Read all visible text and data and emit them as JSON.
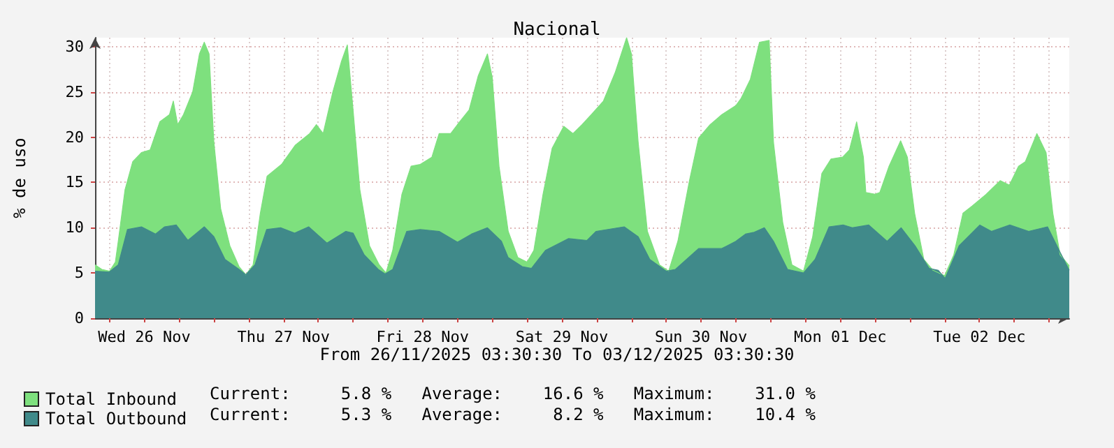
{
  "chart_data": {
    "type": "area",
    "title": "Nacional",
    "ylabel": "% de uso",
    "xlim": [
      "2025-11-26T03:30",
      "2025-12-03T03:30"
    ],
    "xticks": [
      {
        "value": "2025-11-26T06:00",
        "label": null
      },
      {
        "value": "2025-11-26T12:00",
        "label": "Wed 26 Nov"
      },
      {
        "value": "2025-11-26T18:00",
        "label": null
      },
      {
        "value": "2025-11-27T00:00",
        "label": null
      },
      {
        "value": "2025-11-27T06:00",
        "label": null
      },
      {
        "value": "2025-11-27T12:00",
        "label": "Thu 27 Nov"
      },
      {
        "value": "2025-11-27T18:00",
        "label": null
      },
      {
        "value": "2025-11-28T00:00",
        "label": null
      },
      {
        "value": "2025-11-28T06:00",
        "label": null
      },
      {
        "value": "2025-11-28T12:00",
        "label": "Fri 28 Nov"
      },
      {
        "value": "2025-11-28T18:00",
        "label": null
      },
      {
        "value": "2025-11-29T00:00",
        "label": null
      },
      {
        "value": "2025-11-29T06:00",
        "label": null
      },
      {
        "value": "2025-11-29T12:00",
        "label": "Sat 29 Nov"
      },
      {
        "value": "2025-11-29T18:00",
        "label": null
      },
      {
        "value": "2025-11-30T00:00",
        "label": null
      },
      {
        "value": "2025-11-30T06:00",
        "label": null
      },
      {
        "value": "2025-11-30T12:00",
        "label": "Sun 30 Nov"
      },
      {
        "value": "2025-11-30T18:00",
        "label": null
      },
      {
        "value": "2025-12-01T00:00",
        "label": null
      },
      {
        "value": "2025-12-01T06:00",
        "label": null
      },
      {
        "value": "2025-12-01T12:00",
        "label": "Mon 01 Dec"
      },
      {
        "value": "2025-12-01T18:00",
        "label": null
      },
      {
        "value": "2025-12-02T00:00",
        "label": null
      },
      {
        "value": "2025-12-02T06:00",
        "label": null
      },
      {
        "value": "2025-12-02T12:00",
        "label": "Tue 02 Dec"
      },
      {
        "value": "2025-12-02T18:00",
        "label": null
      },
      {
        "value": "2025-12-03T00:00",
        "label": null
      }
    ],
    "ylim": [
      0,
      31
    ],
    "yticks": [
      0,
      5,
      10,
      15,
      20,
      25,
      30
    ],
    "grid": true,
    "legend": "bottom left",
    "annotations": [
      "From 26/11/2025 03:30:30 To 03/12/2025 03:30:30",
      "Current:     5.8 %   Average:    16.6 %   Maximum:    31.0 %",
      "Current:     5.3 %   Average:     8.2 %   Maximum:    10.4 %"
    ],
    "series": [
      {
        "name": "Total Inbound",
        "color": "#7ee07e",
        "x": [
          "2025-11-26T03:30",
          "2025-11-26T04:40",
          "2025-11-26T06:00",
          "2025-11-26T07:00",
          "2025-11-26T07:30",
          "2025-11-26T08:40",
          "2025-11-26T10:00",
          "2025-11-26T11:30",
          "2025-11-26T13:00",
          "2025-11-26T14:40",
          "2025-11-26T16:20",
          "2025-11-26T17:00",
          "2025-11-26T17:45",
          "2025-11-26T18:45",
          "2025-11-26T20:20",
          "2025-11-26T21:30",
          "2025-11-26T22:20",
          "2025-11-26T23:10",
          "2025-11-27T00:00",
          "2025-11-27T01:10",
          "2025-11-27T02:45",
          "2025-11-27T04:20",
          "2025-11-27T05:30",
          "2025-11-27T06:45",
          "2025-11-27T08:00",
          "2025-11-27T09:10",
          "2025-11-27T11:40",
          "2025-11-27T14:00",
          "2025-11-27T16:30",
          "2025-11-27T17:40",
          "2025-11-27T18:50",
          "2025-11-27T20:30",
          "2025-11-27T22:00",
          "2025-11-27T23:00",
          "2025-11-28T00:00",
          "2025-11-28T01:10",
          "2025-11-28T02:50",
          "2025-11-28T04:30",
          "2025-11-28T05:40",
          "2025-11-28T06:50",
          "2025-11-28T08:25",
          "2025-11-28T10:00",
          "2025-11-28T11:35",
          "2025-11-28T13:35",
          "2025-11-28T14:50",
          "2025-11-28T16:50",
          "2025-11-28T18:00",
          "2025-11-28T20:00",
          "2025-11-28T21:35",
          "2025-11-28T23:10",
          "2025-11-29T00:00",
          "2025-11-29T01:10",
          "2025-11-29T02:45",
          "2025-11-29T04:25",
          "2025-11-29T06:00",
          "2025-11-29T07:10",
          "2025-11-29T08:45",
          "2025-11-29T10:20",
          "2025-11-29T12:20",
          "2025-11-29T13:55",
          "2025-11-29T15:30",
          "2025-11-29T17:05",
          "2025-11-29T19:10",
          "2025-11-29T21:10",
          "2025-11-29T23:10",
          "2025-11-30T00:00",
          "2025-11-30T01:10",
          "2025-11-30T02:45",
          "2025-11-30T04:50",
          "2025-11-30T06:25",
          "2025-11-30T08:00",
          "2025-11-30T10:00",
          "2025-11-30T11:35",
          "2025-11-30T13:35",
          "2025-11-30T15:35",
          "2025-11-30T18:00",
          "2025-11-30T18:55",
          "2025-11-30T20:30",
          "2025-11-30T22:05",
          "2025-11-30T23:45",
          "2025-12-01T00:30",
          "2025-12-01T02:05",
          "2025-12-01T03:40",
          "2025-12-01T05:40",
          "2025-12-01T07:15",
          "2025-12-01T08:50",
          "2025-12-01T10:25",
          "2025-12-01T12:25",
          "2025-12-01T13:35",
          "2025-12-01T14:50",
          "2025-12-01T16:00",
          "2025-12-01T16:25",
          "2025-12-01T18:00",
          "2025-12-01T18:50",
          "2025-12-01T20:25",
          "2025-12-01T22:25",
          "2025-12-01T23:35",
          "2025-12-02T00:50",
          "2025-12-02T02:25",
          "2025-12-02T04:00",
          "2025-12-02T06:00",
          "2025-12-02T07:35",
          "2025-12-02T09:10",
          "2025-12-02T10:45",
          "2025-12-02T13:10",
          "2025-12-02T15:35",
          "2025-12-02T17:10",
          "2025-12-02T18:45",
          "2025-12-02T19:55",
          "2025-12-02T21:55",
          "2025-12-02T23:30",
          "2025-12-03T00:40",
          "2025-12-03T01:55",
          "2025-12-03T03:30"
        ],
        "values": [
          5.9,
          5.4,
          5.2,
          6.2,
          8.5,
          14.2,
          17.3,
          18.3,
          18.6,
          21.7,
          22.5,
          24.0,
          21.4,
          22.5,
          25.0,
          29.2,
          30.5,
          29.2,
          19.4,
          12.1,
          8.0,
          5.7,
          4.8,
          5.9,
          11.6,
          15.7,
          17.0,
          19.1,
          20.4,
          21.4,
          20.4,
          25.0,
          28.4,
          30.2,
          23.0,
          14.2,
          8.0,
          5.9,
          5.0,
          7.5,
          13.7,
          16.8,
          17.0,
          17.8,
          20.4,
          20.4,
          21.4,
          23.0,
          26.8,
          29.2,
          26.6,
          16.8,
          9.6,
          6.7,
          6.2,
          7.5,
          13.7,
          18.8,
          21.2,
          20.4,
          21.4,
          22.5,
          24.0,
          27.1,
          31.0,
          29.2,
          19.4,
          9.6,
          5.9,
          5.2,
          8.5,
          15.2,
          19.9,
          21.4,
          22.5,
          23.5,
          24.3,
          26.4,
          30.5,
          30.7,
          19.4,
          10.6,
          5.9,
          5.2,
          9.0,
          16.0,
          17.6,
          17.8,
          18.6,
          21.7,
          17.8,
          13.9,
          13.7,
          13.9,
          16.8,
          19.6,
          17.8,
          11.6,
          6.5,
          5.3,
          4.7,
          7.0,
          11.6,
          12.4,
          13.7,
          15.2,
          14.7,
          16.8,
          17.3,
          20.4,
          18.3,
          11.6,
          7.0,
          5.8
        ]
      },
      {
        "name": "Total Outbound",
        "color": "#408a8a",
        "x": [
          "2025-11-26T03:30",
          "2025-11-26T05:55",
          "2025-11-26T07:30",
          "2025-11-26T09:05",
          "2025-11-26T11:30",
          "2025-11-26T13:55",
          "2025-11-26T15:30",
          "2025-11-26T17:30",
          "2025-11-26T19:30",
          "2025-11-26T22:20",
          "2025-11-27T00:00",
          "2025-11-27T01:55",
          "2025-11-27T04:20",
          "2025-11-27T05:30",
          "2025-11-27T07:05",
          "2025-11-27T09:05",
          "2025-11-27T11:30",
          "2025-11-27T13:55",
          "2025-11-27T16:20",
          "2025-11-27T19:30",
          "2025-11-27T22:45",
          "2025-11-28T00:00",
          "2025-11-28T01:55",
          "2025-11-28T04:20",
          "2025-11-28T05:30",
          "2025-11-28T06:50",
          "2025-11-28T09:15",
          "2025-11-28T11:35",
          "2025-11-28T14:50",
          "2025-11-28T18:00",
          "2025-11-28T20:25",
          "2025-11-28T23:10",
          "2025-11-29T01:35",
          "2025-11-29T02:45",
          "2025-11-29T05:10",
          "2025-11-29T06:45",
          "2025-11-29T09:10",
          "2025-11-29T13:10",
          "2025-11-29T16:20",
          "2025-11-29T17:55",
          "2025-11-29T22:45",
          "2025-11-30T01:10",
          "2025-11-30T03:10",
          "2025-11-30T06:00",
          "2025-11-30T07:35",
          "2025-11-30T11:35",
          "2025-11-30T15:35",
          "2025-11-30T16:30",
          "2025-11-30T18:00",
          "2025-11-30T19:40",
          "2025-11-30T21:10",
          "2025-11-30T22:55",
          "2025-12-01T00:30",
          "2025-12-01T02:55",
          "2025-12-01T05:40",
          "2025-12-01T07:40",
          "2025-12-01T10:05",
          "2025-12-01T12:30",
          "2025-12-01T14:05",
          "2025-12-01T16:55",
          "2025-12-01T20:05",
          "2025-12-01T22:30",
          "2025-12-02T00:55",
          "2025-12-02T03:20",
          "2025-12-02T04:55",
          "2025-12-02T06:05",
          "2025-12-02T08:30",
          "2025-12-02T12:05",
          "2025-12-02T14:05",
          "2025-12-02T17:15",
          "2025-12-02T20:30",
          "2025-12-02T23:45",
          "2025-12-03T01:45",
          "2025-12-03T03:30"
        ],
        "values": [
          5.2,
          5.1,
          5.9,
          9.8,
          10.1,
          9.3,
          10.1,
          10.3,
          8.6,
          10.1,
          9.0,
          6.5,
          5.4,
          4.8,
          5.9,
          9.8,
          10.0,
          9.4,
          10.1,
          8.3,
          9.6,
          9.4,
          7.0,
          5.4,
          4.9,
          5.4,
          9.6,
          9.8,
          9.6,
          8.4,
          9.3,
          10.0,
          8.5,
          6.7,
          5.7,
          5.5,
          7.5,
          8.8,
          8.6,
          9.6,
          10.1,
          9.0,
          6.5,
          5.2,
          5.4,
          7.7,
          7.7,
          8.0,
          8.5,
          9.3,
          9.5,
          10.0,
          8.5,
          5.4,
          5.0,
          6.5,
          10.1,
          10.3,
          10.0,
          10.3,
          8.5,
          10.0,
          8.0,
          5.5,
          5.3,
          4.4,
          8.0,
          10.3,
          9.6,
          10.3,
          9.6,
          10.1,
          7.5,
          5.3
        ]
      }
    ]
  }
}
